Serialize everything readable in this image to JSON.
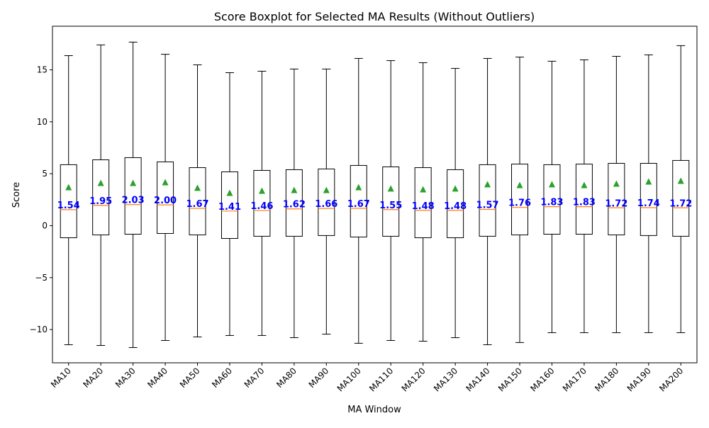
{
  "chart_data": {
    "type": "boxplot",
    "title": "Score Boxplot for Selected MA Results (Without Outliers)",
    "xlabel": "MA Window",
    "ylabel": "Score",
    "ylim": [
      -13.2,
      19.2
    ],
    "yticks": [
      -10,
      -5,
      0,
      5,
      10,
      15
    ],
    "ytick_labels": [
      "−10",
      "−5",
      "0",
      "5",
      "10",
      "15"
    ],
    "grid": false,
    "colors": {
      "box": "#000000",
      "median": "#ff7f0e",
      "mean": "#2ca02c",
      "label": "#0000ff"
    },
    "categories": [
      "MA10",
      "MA20",
      "MA30",
      "MA40",
      "MA50",
      "MA60",
      "MA70",
      "MA80",
      "MA90",
      "MA100",
      "MA110",
      "MA120",
      "MA130",
      "MA140",
      "MA150",
      "MA160",
      "MA170",
      "MA180",
      "MA190",
      "MA200"
    ],
    "whisker_high": [
      16.37,
      17.4,
      17.67,
      16.5,
      15.48,
      14.73,
      14.87,
      15.08,
      15.08,
      16.1,
      15.89,
      15.69,
      15.14,
      16.1,
      16.23,
      15.83,
      15.96,
      16.3,
      16.44,
      17.33
    ],
    "q3": [
      5.87,
      6.34,
      6.55,
      6.14,
      5.59,
      5.18,
      5.32,
      5.39,
      5.46,
      5.8,
      5.66,
      5.59,
      5.39,
      5.87,
      5.93,
      5.87,
      5.93,
      6.0,
      6.0,
      6.28
    ],
    "median": [
      1.54,
      1.95,
      2.03,
      2.0,
      1.67,
      1.41,
      1.46,
      1.62,
      1.66,
      1.67,
      1.55,
      1.48,
      1.48,
      1.57,
      1.76,
      1.83,
      1.83,
      1.72,
      1.74,
      1.72
    ],
    "median_labels": [
      "1.54",
      "1.95",
      "2.03",
      "2.00",
      "1.67",
      "1.41",
      "1.46",
      "1.62",
      "1.66",
      "1.67",
      "1.55",
      "1.48",
      "1.48",
      "1.57",
      "1.76",
      "1.83",
      "1.83",
      "1.72",
      "1.74",
      "1.72"
    ],
    "q1": [
      -1.16,
      -0.89,
      -0.82,
      -0.75,
      -0.89,
      -1.23,
      -1.02,
      -1.02,
      -0.95,
      -1.09,
      -1.02,
      -1.16,
      -1.16,
      -1.02,
      -0.89,
      -0.82,
      -0.82,
      -0.89,
      -0.95,
      -1.02
    ],
    "whisker_low": [
      -11.46,
      -11.53,
      -11.73,
      -11.05,
      -10.71,
      -10.57,
      -10.57,
      -10.78,
      -10.44,
      -11.32,
      -11.05,
      -11.12,
      -10.78,
      -11.46,
      -11.25,
      -10.3,
      -10.3,
      -10.3,
      -10.3,
      -10.3
    ],
    "mean": [
      3.68,
      4.09,
      4.09,
      4.16,
      3.62,
      3.14,
      3.34,
      3.41,
      3.41,
      3.68,
      3.55,
      3.48,
      3.55,
      3.96,
      3.89,
      3.96,
      3.89,
      4.02,
      4.23,
      4.3
    ]
  }
}
